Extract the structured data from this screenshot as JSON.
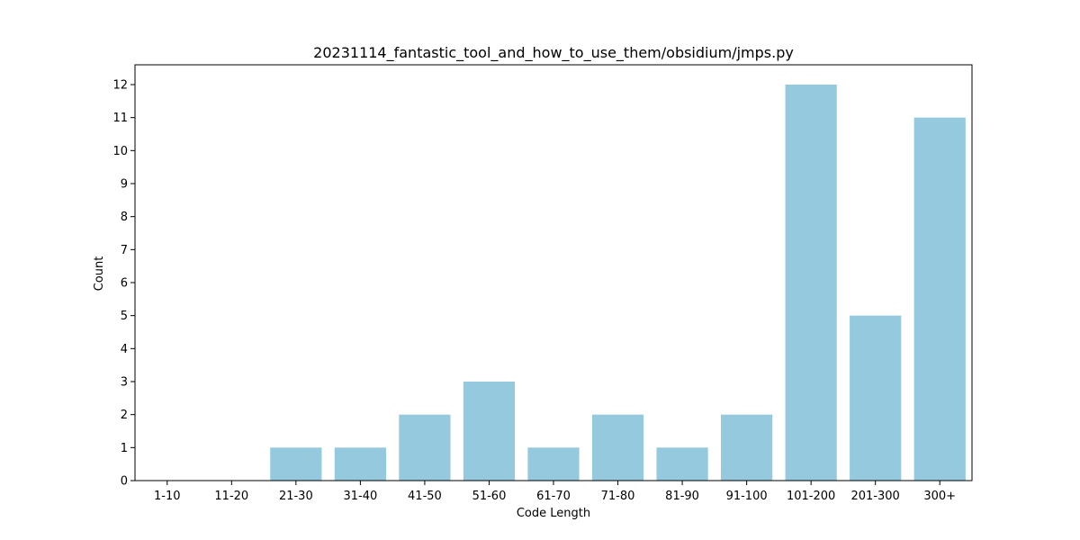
{
  "chart_data": {
    "type": "bar",
    "title": "20231114_fantastic_tool_and_how_to_use_them/obsidium/jmps.py",
    "xlabel": "Code Length",
    "ylabel": "Count",
    "categories": [
      "1-10",
      "11-20",
      "21-30",
      "31-40",
      "41-50",
      "51-60",
      "61-70",
      "71-80",
      "81-90",
      "91-100",
      "101-200",
      "201-300",
      "300+"
    ],
    "values": [
      0,
      0,
      1,
      1,
      2,
      3,
      1,
      2,
      1,
      2,
      12,
      5,
      11
    ],
    "ylim": [
      0,
      12.6
    ],
    "yticks": [
      "0",
      "1",
      "2",
      "3",
      "4",
      "5",
      "6",
      "7",
      "8",
      "9",
      "10",
      "11",
      "12"
    ],
    "grid": false,
    "bar_color": "#95c9de"
  }
}
